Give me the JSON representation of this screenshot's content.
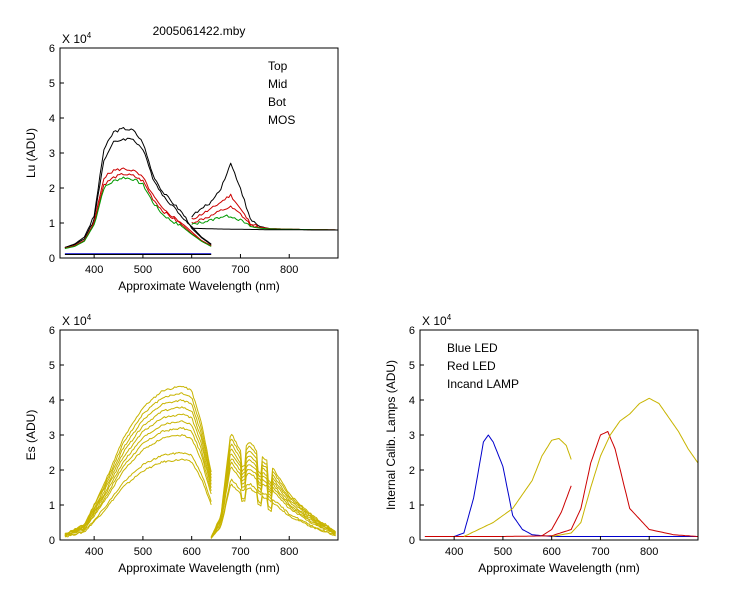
{
  "figure_title": "2005061422.mby",
  "colors": {
    "black": "#000000",
    "red": "#cc0000",
    "green": "#009900",
    "blue": "#0000cc",
    "olive": "#c8b400"
  },
  "chart_data": [
    {
      "id": "lu",
      "type": "line",
      "title": "2005061422.mby",
      "xlabel": "Approximate Wavelength (nm)",
      "ylabel": "Lu (ADU)",
      "exponent_label": "X 10",
      "exponent_power": "4",
      "xlim": [
        330,
        900
      ],
      "ylim": [
        0,
        60000
      ],
      "xticks": [
        400,
        500,
        600,
        700,
        800
      ],
      "yticks": [
        0,
        10000,
        20000,
        30000,
        40000,
        50000,
        60000
      ],
      "ytick_labels": [
        "0",
        "1",
        "2",
        "3",
        "4",
        "5",
        "6"
      ],
      "legend": [
        {
          "name": "Top",
          "color": "#000000"
        },
        {
          "name": "Mid",
          "color": "#cc0000"
        },
        {
          "name": "Bot",
          "color": "#009900"
        },
        {
          "name": "MOS",
          "color": "#0000cc"
        }
      ],
      "legend_placement": "top-right",
      "series": [
        {
          "group": "Top",
          "color": "#000000",
          "x": [
            340,
            360,
            380,
            400,
            420,
            440,
            460,
            480,
            500,
            520,
            540,
            560,
            580,
            600,
            620,
            640
          ],
          "y": [
            3000,
            4000,
            6000,
            12000,
            31000,
            36000,
            37000,
            36500,
            33000,
            24000,
            19000,
            16000,
            13000,
            9000,
            6000,
            4000
          ]
        },
        {
          "group": "Top",
          "color": "#000000",
          "x": [
            340,
            360,
            380,
            400,
            420,
            440,
            460,
            480,
            500,
            520,
            540,
            560,
            580,
            600,
            620,
            640
          ],
          "y": [
            3000,
            3800,
            5500,
            11000,
            28000,
            33000,
            34000,
            34000,
            31000,
            23000,
            18000,
            15000,
            12000,
            8500,
            5800,
            3800
          ]
        },
        {
          "group": "Mid",
          "color": "#cc0000",
          "x": [
            340,
            360,
            380,
            400,
            420,
            440,
            460,
            480,
            500,
            520,
            540,
            560,
            580,
            600,
            620,
            640
          ],
          "y": [
            2800,
            3500,
            5000,
            10000,
            23000,
            25000,
            25500,
            25000,
            23000,
            18000,
            14000,
            12000,
            10000,
            7500,
            5000,
            3500
          ]
        },
        {
          "group": "Mid",
          "color": "#cc0000",
          "x": [
            340,
            360,
            380,
            400,
            420,
            440,
            460,
            480,
            500,
            520,
            540,
            560,
            580,
            600,
            620,
            640
          ],
          "y": [
            2800,
            3500,
            5000,
            10000,
            21000,
            23000,
            24000,
            23500,
            22000,
            17000,
            13500,
            11500,
            9500,
            7000,
            5000,
            3500
          ]
        },
        {
          "group": "Bot",
          "color": "#009900",
          "x": [
            340,
            360,
            380,
            400,
            420,
            440,
            460,
            480,
            500,
            520,
            540,
            560,
            580,
            600,
            620,
            640
          ],
          "y": [
            2700,
            3300,
            4800,
            9500,
            20000,
            22000,
            23000,
            22500,
            21000,
            16000,
            12500,
            10500,
            9000,
            6800,
            4800,
            3300
          ]
        },
        {
          "group": "MOS",
          "color": "#0000cc",
          "x": [
            340,
            640
          ],
          "y": [
            1200,
            1200
          ]
        },
        {
          "group": "MOS",
          "color": "#000000",
          "x": [
            340,
            640
          ],
          "y": [
            1000,
            1000
          ]
        },
        {
          "group": "Top",
          "color": "#000000",
          "x": [
            600,
            620,
            640,
            660,
            680,
            700,
            720,
            740,
            760,
            800,
            850,
            900
          ],
          "y": [
            12000,
            14000,
            16000,
            20000,
            27000,
            20000,
            11000,
            9000,
            8400,
            8200,
            8100,
            8000
          ]
        },
        {
          "group": "Mid",
          "color": "#cc0000",
          "x": [
            600,
            620,
            640,
            660,
            680,
            700,
            720,
            740,
            760,
            800,
            850,
            900
          ],
          "y": [
            11000,
            12500,
            14000,
            16000,
            18000,
            14000,
            10000,
            8800,
            8400,
            8200,
            8100,
            8000
          ]
        },
        {
          "group": "Mid",
          "color": "#cc0000",
          "x": [
            600,
            620,
            640,
            660,
            680,
            700,
            720,
            740,
            760,
            800,
            850,
            900
          ],
          "y": [
            10000,
            11000,
            12000,
            13500,
            14500,
            12500,
            9500,
            8600,
            8300,
            8200,
            8100,
            8000
          ]
        },
        {
          "group": "Bot",
          "color": "#009900",
          "x": [
            600,
            620,
            640,
            660,
            680,
            700,
            720,
            740,
            760,
            800,
            850,
            900
          ],
          "y": [
            9500,
            10200,
            10800,
            11800,
            12000,
            10800,
            9000,
            8500,
            8300,
            8200,
            8100,
            8000
          ]
        },
        {
          "group": "Top",
          "color": "#000000",
          "x": [
            600,
            650,
            700,
            750,
            800,
            850,
            900
          ],
          "y": [
            8500,
            8300,
            8200,
            8100,
            8100,
            8000,
            8000
          ]
        }
      ]
    },
    {
      "id": "es",
      "type": "line",
      "xlabel": "Approximate Wavelength (nm)",
      "ylabel": "Es (ADU)",
      "exponent_label": "X 10",
      "exponent_power": "4",
      "xlim": [
        330,
        900
      ],
      "ylim": [
        0,
        60000
      ],
      "xticks": [
        400,
        500,
        600,
        700,
        800
      ],
      "yticks": [
        0,
        10000,
        20000,
        30000,
        40000,
        50000,
        60000
      ],
      "ytick_labels": [
        "0",
        "1",
        "2",
        "3",
        "4",
        "5",
        "6"
      ],
      "series_color": "#c8b400",
      "blue_band_x": [
        340,
        380,
        420,
        460,
        500,
        540,
        580,
        600,
        620,
        640
      ],
      "blue_band_shape": [
        0.04,
        0.1,
        0.36,
        0.66,
        0.86,
        0.97,
        1.0,
        0.97,
        0.76,
        0.44
      ],
      "red_band_x": [
        640,
        660,
        680,
        700,
        720,
        740,
        760,
        780,
        800,
        820,
        840,
        860,
        880,
        895
      ],
      "red_band_shape": [
        0.02,
        0.16,
        0.7,
        0.58,
        0.64,
        0.55,
        0.5,
        0.4,
        0.3,
        0.24,
        0.18,
        0.13,
        0.09,
        0.05
      ],
      "peaks": [
        44000,
        42000,
        40000,
        38000,
        36000,
        34000,
        32000,
        30000,
        25000,
        23000
      ]
    },
    {
      "id": "lamps",
      "type": "line",
      "xlabel": "Approximate Wavelength (nm)",
      "ylabel": "Internal Calib. Lamps (ADU)",
      "exponent_label": "X 10",
      "exponent_power": "4",
      "xlim": [
        330,
        900
      ],
      "ylim": [
        0,
        60000
      ],
      "xticks": [
        400,
        500,
        600,
        700,
        800
      ],
      "yticks": [
        0,
        10000,
        20000,
        30000,
        40000,
        50000,
        60000
      ],
      "ytick_labels": [
        "0",
        "1",
        "2",
        "3",
        "4",
        "5",
        "6"
      ],
      "legend": [
        {
          "name": "Blue LED",
          "color": "#0000cc"
        },
        {
          "name": "Red LED",
          "color": "#cc0000"
        },
        {
          "name": "Incand LAMP",
          "color": "#c8b400"
        }
      ],
      "legend_placement": "top-left",
      "series": [
        {
          "name": "Blue LED",
          "color": "#0000cc",
          "x": [
            340,
            400,
            420,
            440,
            460,
            470,
            480,
            500,
            520,
            540,
            560,
            600,
            640,
            700,
            800,
            900
          ],
          "y": [
            1000,
            1000,
            2000,
            12000,
            28000,
            30000,
            28000,
            21000,
            7000,
            3000,
            1500,
            1000,
            1000,
            1000,
            1000,
            1000
          ]
        },
        {
          "name": "Red LED",
          "color": "#cc0000",
          "x": [
            340,
            500,
            600,
            640,
            660,
            680,
            700,
            715,
            730,
            760,
            800,
            850,
            900
          ],
          "y": [
            1000,
            1000,
            1200,
            3000,
            9000,
            22000,
            30000,
            31000,
            26000,
            9000,
            3000,
            1500,
            1000
          ]
        },
        {
          "name": "Red LED",
          "color": "#cc0000",
          "x": [
            580,
            600,
            620,
            640
          ],
          "y": [
            1200,
            3000,
            8000,
            15500
          ]
        },
        {
          "name": "Incand LAMP",
          "color": "#c8b400",
          "x": [
            420,
            450,
            480,
            500,
            520,
            540,
            560,
            580,
            600,
            615,
            630,
            640
          ],
          "y": [
            1000,
            3000,
            5000,
            7000,
            9000,
            13000,
            17000,
            24000,
            28500,
            29000,
            27000,
            23000
          ]
        },
        {
          "name": "Incand LAMP",
          "color": "#c8b400",
          "x": [
            600,
            640,
            660,
            680,
            700,
            720,
            740,
            760,
            780,
            800,
            820,
            840,
            860,
            880,
            900
          ],
          "y": [
            1000,
            2000,
            5000,
            15000,
            24000,
            30000,
            34000,
            36000,
            39000,
            40500,
            39000,
            35000,
            31000,
            26000,
            22000
          ]
        }
      ]
    }
  ]
}
